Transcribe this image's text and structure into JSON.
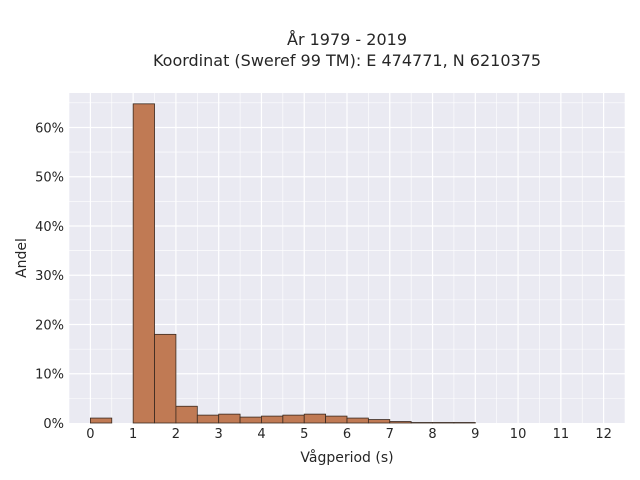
{
  "chart_data": {
    "type": "bar",
    "title": "År 1979 - 2019",
    "subtitle": "Koordinat (Sweref 99 TM): E 474771, N 6210375",
    "xlabel": "Vågperiod (s)",
    "ylabel": "Andel",
    "xlim": [
      -0.5,
      12.5
    ],
    "ylim": [
      0,
      0.67
    ],
    "x_ticks": [
      0,
      1,
      2,
      3,
      4,
      5,
      6,
      7,
      8,
      9,
      10,
      11,
      12
    ],
    "x_tick_labels": [
      "0",
      "1",
      "2",
      "3",
      "4",
      "5",
      "6",
      "7",
      "8",
      "9",
      "10",
      "11",
      "12"
    ],
    "y_ticks": [
      0,
      0.1,
      0.2,
      0.3,
      0.4,
      0.5,
      0.6
    ],
    "y_tick_labels": [
      "0%",
      "10%",
      "20%",
      "30%",
      "40%",
      "50%",
      "60%"
    ],
    "bin_width": 0.5,
    "bins": [
      {
        "x0": 0.0,
        "x1": 0.5,
        "value": 0.01
      },
      {
        "x0": 0.5,
        "x1": 1.0,
        "value": 0.0
      },
      {
        "x0": 1.0,
        "x1": 1.5,
        "value": 0.648
      },
      {
        "x0": 1.5,
        "x1": 2.0,
        "value": 0.18
      },
      {
        "x0": 2.0,
        "x1": 2.5,
        "value": 0.034
      },
      {
        "x0": 2.5,
        "x1": 3.0,
        "value": 0.016
      },
      {
        "x0": 3.0,
        "x1": 3.5,
        "value": 0.018
      },
      {
        "x0": 3.5,
        "x1": 4.0,
        "value": 0.012
      },
      {
        "x0": 4.0,
        "x1": 4.5,
        "value": 0.014
      },
      {
        "x0": 4.5,
        "x1": 5.0,
        "value": 0.016
      },
      {
        "x0": 5.0,
        "x1": 5.5,
        "value": 0.018
      },
      {
        "x0": 5.5,
        "x1": 6.0,
        "value": 0.014
      },
      {
        "x0": 6.0,
        "x1": 6.5,
        "value": 0.01
      },
      {
        "x0": 6.5,
        "x1": 7.0,
        "value": 0.007
      },
      {
        "x0": 7.0,
        "x1": 7.5,
        "value": 0.003
      },
      {
        "x0": 7.5,
        "x1": 8.0,
        "value": 0.001
      },
      {
        "x0": 8.0,
        "x1": 8.5,
        "value": 0.001
      },
      {
        "x0": 8.5,
        "x1": 9.0,
        "value": 0.001
      }
    ],
    "bar_color": "#c07a54",
    "bar_edge_color": "#3a2a20",
    "plot_background": "#eaeaf2",
    "grid": true,
    "grid_color": "#ffffff",
    "legend": "none"
  }
}
